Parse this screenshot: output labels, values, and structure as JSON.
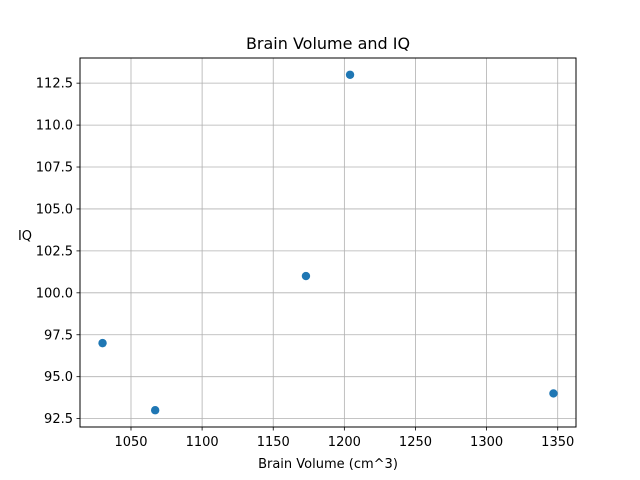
{
  "chart_data": {
    "type": "scatter",
    "title": "Brain Volume and IQ",
    "xlabel": "Brain Volume (cm^3)",
    "ylabel": "IQ",
    "x": [
      1030,
      1067,
      1173,
      1204,
      1347
    ],
    "y": [
      97,
      93,
      101,
      113,
      94
    ],
    "xlim": [
      1014.15,
      1362.85
    ],
    "ylim": [
      92,
      114
    ],
    "xticks": [
      1050,
      1100,
      1150,
      1200,
      1250,
      1300,
      1350
    ],
    "yticks": [
      92.5,
      95.0,
      97.5,
      100.0,
      102.5,
      105.0,
      107.5,
      110.0,
      112.5
    ],
    "grid": true,
    "marker_color": "#1f77b4"
  }
}
